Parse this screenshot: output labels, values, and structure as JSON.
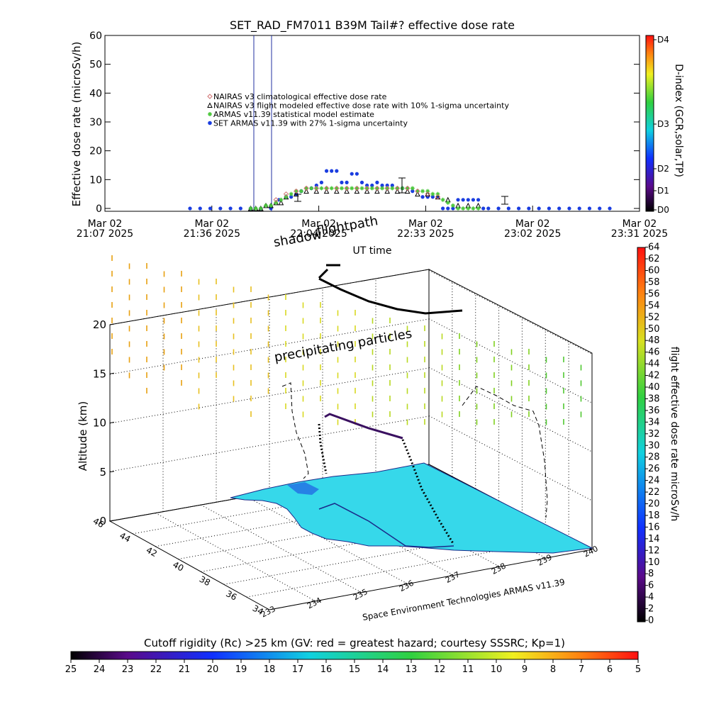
{
  "chart_data": [
    {
      "type": "scatter",
      "title": "SET_RAD_FM7011  B39M Tail#? effective dose rate",
      "ylabel": "Effective dose rate (microSv/h)",
      "xlabel": "UT time",
      "ylim": [
        0,
        60
      ],
      "yticks": [
        "0",
        "10",
        "20",
        "30",
        "40",
        "50",
        "60"
      ],
      "xticks": [
        {
          "date": "Mar 02",
          "time": "21:07 2025"
        },
        {
          "date": "Mar 02",
          "time": "21:36 2025"
        },
        {
          "date": "Mar 02",
          "time": "22:04 2025"
        },
        {
          "date": "Mar 02",
          "time": "22:33 2025"
        },
        {
          "date": "Mar 02",
          "time": "23:02 2025"
        },
        {
          "date": "Mar 02",
          "time": "23:31 2025"
        }
      ],
      "vertical_markers_min": [
        110,
        125
      ],
      "legend": [
        {
          "label": "NAIRAS v3 climatological effective dose rate",
          "color": "#d07070",
          "symbol": "diamond"
        },
        {
          "label": "NAIRAS v3 flight modeled effective dose rate with 10% 1-sigma uncertainty",
          "color": "#000000",
          "symbol": "triangle"
        },
        {
          "label": "ARMAS v11.39 statistical model estimate",
          "color": "#4cc83c",
          "symbol": "asterisk"
        },
        {
          "label": "SET ARMAS v11.39 with 27% 1-sigma uncertainty",
          "color": "#1a3de0",
          "symbol": "circle"
        }
      ],
      "series": [
        {
          "name": "SET ARMAS v11.39 with 27% 1-sigma uncertainty",
          "x": [
            55,
            65,
            75,
            85,
            95,
            105,
            115,
            125,
            135,
            143,
            150,
            155,
            160,
            165,
            170,
            175,
            180,
            185,
            190,
            195,
            200,
            205,
            210,
            215,
            220,
            225,
            230,
            235,
            240,
            245,
            250,
            255,
            260,
            265,
            270,
            275,
            280,
            285,
            290,
            295,
            300,
            305,
            310,
            315,
            320,
            325,
            330,
            335,
            340,
            345,
            350,
            360,
            370,
            380,
            390,
            400,
            410,
            420,
            430,
            440,
            450,
            460,
            470
          ],
          "y": [
            0,
            0,
            0,
            0,
            0,
            0,
            0,
            0,
            0,
            3,
            4,
            4,
            5,
            6,
            7,
            7,
            8,
            9,
            13,
            13,
            13,
            9,
            9,
            12,
            12,
            9,
            8,
            8,
            9,
            8,
            8,
            8,
            7,
            7,
            7,
            6,
            6,
            4,
            4,
            4,
            4,
            0,
            0,
            0,
            3,
            3,
            3,
            3,
            3,
            0,
            0,
            0,
            0,
            0,
            0,
            0,
            0,
            0,
            0,
            0,
            0,
            0,
            0
          ]
        },
        {
          "name": "NAIRAS v3 flight modeled effective dose rate with 10% 1-sigma uncertainty",
          "x": [
            115,
            120,
            125,
            130,
            135,
            140,
            145,
            150,
            160,
            170,
            180,
            190,
            200,
            210,
            220,
            230,
            240,
            250,
            260,
            270,
            280,
            290,
            300,
            310,
            320,
            330,
            340
          ],
          "y": [
            0,
            0,
            0,
            1,
            1,
            2,
            2,
            4,
            5,
            6,
            6,
            6,
            6,
            6,
            6,
            6,
            6,
            6,
            6,
            6,
            5,
            5,
            4,
            3,
            1,
            1,
            1
          ]
        },
        {
          "name": "ARMAS v11.39 statistical model estimate",
          "x": [
            115,
            120,
            125,
            130,
            135,
            140,
            145,
            150,
            155,
            160,
            165,
            170,
            175,
            180,
            185,
            190,
            195,
            200,
            205,
            210,
            215,
            220,
            225,
            230,
            235,
            240,
            245,
            250,
            255,
            260,
            265,
            270,
            275,
            280,
            285,
            290,
            295,
            300,
            305,
            310,
            315,
            320,
            325,
            330,
            335,
            340
          ],
          "y": [
            0,
            0,
            0,
            1,
            1,
            2,
            3,
            4,
            5,
            6,
            6,
            7,
            7,
            7,
            7,
            7,
            7,
            7,
            7,
            7,
            7,
            7,
            7,
            7,
            7,
            7,
            7,
            7,
            7,
            7,
            7,
            7,
            7,
            6,
            6,
            6,
            5,
            5,
            3,
            2,
            1,
            0,
            0,
            0,
            0,
            0
          ]
        },
        {
          "name": "NAIRAS v3 climatological effective dose rate",
          "x": [
            140,
            150,
            160,
            170,
            180,
            190,
            200,
            210,
            220,
            230,
            240,
            250,
            260,
            270,
            280,
            290,
            300
          ],
          "y": [
            3,
            5,
            6,
            7,
            7,
            7,
            7,
            7,
            7,
            7,
            7,
            7,
            7,
            7,
            6,
            5,
            4
          ]
        }
      ],
      "d_index": {
        "label": "D-index (GCR,solar,TP)",
        "ticks": [
          "D0",
          "D1",
          "D2",
          "D3",
          "D4"
        ]
      }
    },
    {
      "type": "scatter",
      "zlabel": "Altitude (km)",
      "zticks": [
        "0",
        "5",
        "10",
        "15",
        "20"
      ],
      "lat_ticks": [
        "34",
        "36",
        "38",
        "40",
        "42",
        "44",
        "46"
      ],
      "lon_ticks": [
        "233",
        "234",
        "235",
        "236",
        "237",
        "238",
        "239",
        "240"
      ],
      "annotations": {
        "flightpath": "flightpath",
        "shadow": "shadow",
        "precipitating": "precipitating particles",
        "credit": "Space Environment Technologies ARMAS v11.39"
      },
      "colorbar": {
        "label": "flight effective dose rate microSv/h",
        "ticks": [
          "0",
          "2",
          "4",
          "6",
          "8",
          "10",
          "12",
          "14",
          "16",
          "18",
          "20",
          "22",
          "24",
          "26",
          "28",
          "30",
          "32",
          "34",
          "36",
          "38",
          "40",
          "42",
          "44",
          "46",
          "48",
          "50",
          "52",
          "54",
          "56",
          "58",
          "60",
          "62",
          "64"
        ]
      }
    },
    {
      "type": "heatmap",
      "title": "Cutoff rigidity (Rc) >25 km (GV: red = greatest hazard; courtesy SSSRC; Kp=1)",
      "ticks": [
        "25",
        "24",
        "23",
        "22",
        "21",
        "20",
        "19",
        "18",
        "17",
        "16",
        "15",
        "14",
        "13",
        "12",
        "11",
        "10",
        "9",
        "8",
        "7",
        "6",
        "5"
      ]
    }
  ],
  "colors": {
    "set_armas": "#1a3de0",
    "nairas_flight": "#000000",
    "armas_model": "#4cc83c",
    "nairas_clim": "#d07070",
    "marker_lines": "#2030a0",
    "land": "#36d8ea"
  }
}
